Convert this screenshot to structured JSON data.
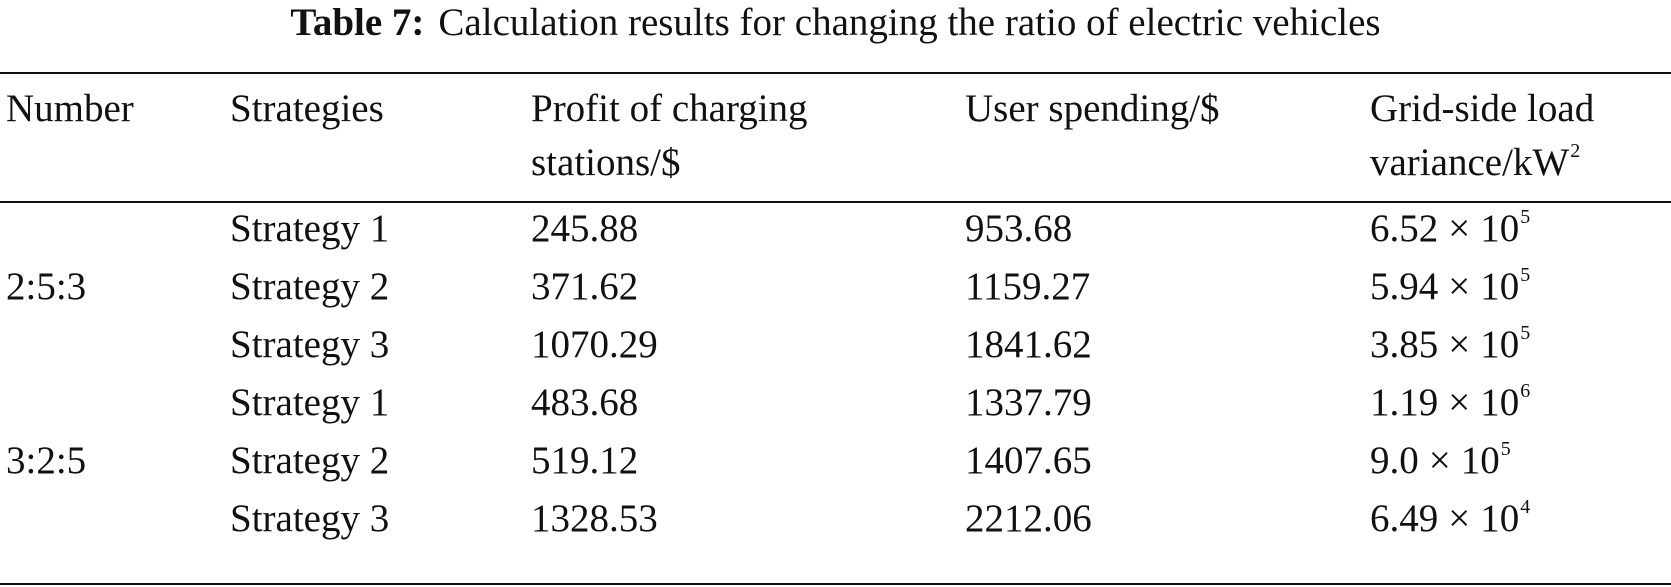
{
  "caption": {
    "label": "Table 7:",
    "text": "Calculation results for changing the ratio of electric vehicles"
  },
  "header": {
    "number": "Number",
    "strategies": "Strategies",
    "profit_line1": "Profit of charging",
    "profit_line2": "stations/$",
    "spending": "User spending/$",
    "variance_line1": "Grid-side load",
    "variance_line2": "variance/kW",
    "variance_exp": "2"
  },
  "times_symbol": "×",
  "groups": [
    {
      "number": "2:5:3",
      "rows": [
        {
          "strategy": "Strategy 1",
          "profit": "245.88",
          "spending": "953.68",
          "variance_mantissa": "6.52",
          "variance_base": "10",
          "variance_exp": "5"
        },
        {
          "strategy": "Strategy 2",
          "profit": "371.62",
          "spending": "1159.27",
          "variance_mantissa": "5.94",
          "variance_base": "10",
          "variance_exp": "5"
        },
        {
          "strategy": "Strategy 3",
          "profit": "1070.29",
          "spending": "1841.62",
          "variance_mantissa": "3.85",
          "variance_base": "10",
          "variance_exp": "5"
        }
      ]
    },
    {
      "number": "3:2:5",
      "rows": [
        {
          "strategy": "Strategy 1",
          "profit": "483.68",
          "spending": "1337.79",
          "variance_mantissa": "1.19",
          "variance_base": "10",
          "variance_exp": "6"
        },
        {
          "strategy": "Strategy 2",
          "profit": "519.12",
          "spending": "1407.65",
          "variance_mantissa": "9.0",
          "variance_base": "10",
          "variance_exp": "5"
        },
        {
          "strategy": "Strategy 3",
          "profit": "1328.53",
          "spending": "2212.06",
          "variance_mantissa": "6.49",
          "variance_base": "10",
          "variance_exp": "4"
        }
      ]
    }
  ]
}
